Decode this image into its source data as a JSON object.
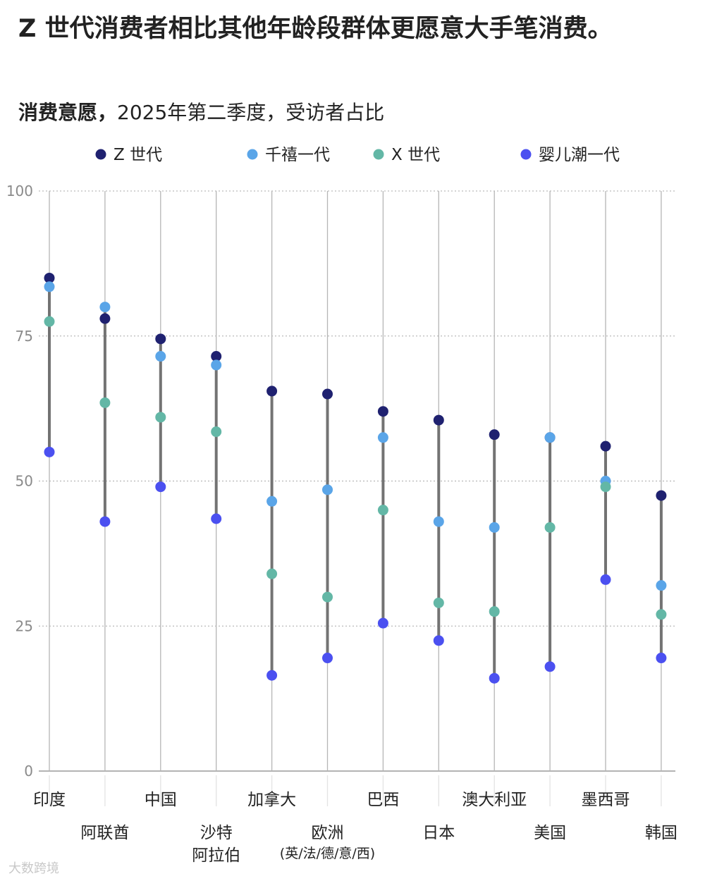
{
  "title": "Z 世代消费者相比其他年龄段群体更愿意大手笔消费。",
  "subtitle_bold": "消费意愿，",
  "subtitle_rest": "2025年第二季度，受访者占比",
  "watermark": "大数跨境",
  "chart_data": {
    "type": "dot-range",
    "ylim": [
      0,
      100
    ],
    "yticks": [
      0,
      25,
      50,
      75,
      100
    ],
    "grid": true,
    "legend_position": "top",
    "categories": [
      [
        "印度"
      ],
      [
        "阿联酋"
      ],
      [
        "中国"
      ],
      [
        "沙特",
        "阿拉伯"
      ],
      [
        "加拿大"
      ],
      [
        "欧洲",
        "(英/法/德/意/西)"
      ],
      [
        "巴西"
      ],
      [
        "日本"
      ],
      [
        "澳大利亚"
      ],
      [
        "美国"
      ],
      [
        "墨西哥"
      ],
      [
        "韩国"
      ]
    ],
    "series": [
      {
        "name": "Z 世代",
        "color": "#1f2170",
        "values": [
          85,
          78,
          74.5,
          71.5,
          65.5,
          65,
          62,
          60.5,
          58,
          57.5,
          56,
          47.5
        ]
      },
      {
        "name": "千禧一代",
        "color": "#5aa5e8",
        "values": [
          83.5,
          80,
          71.5,
          70,
          46.5,
          48.5,
          57.5,
          43,
          42,
          57.5,
          50,
          32
        ]
      },
      {
        "name": "X 世代",
        "color": "#63b7a6",
        "values": [
          77.5,
          63.5,
          61,
          58.5,
          34,
          30,
          45,
          29,
          27.5,
          42,
          49,
          27
        ]
      },
      {
        "name": "婴儿潮一代",
        "color": "#4b50f0",
        "values": [
          55,
          43,
          49,
          43.5,
          16.5,
          19.5,
          25.5,
          22.5,
          16,
          18,
          33,
          19.5
        ]
      }
    ]
  }
}
